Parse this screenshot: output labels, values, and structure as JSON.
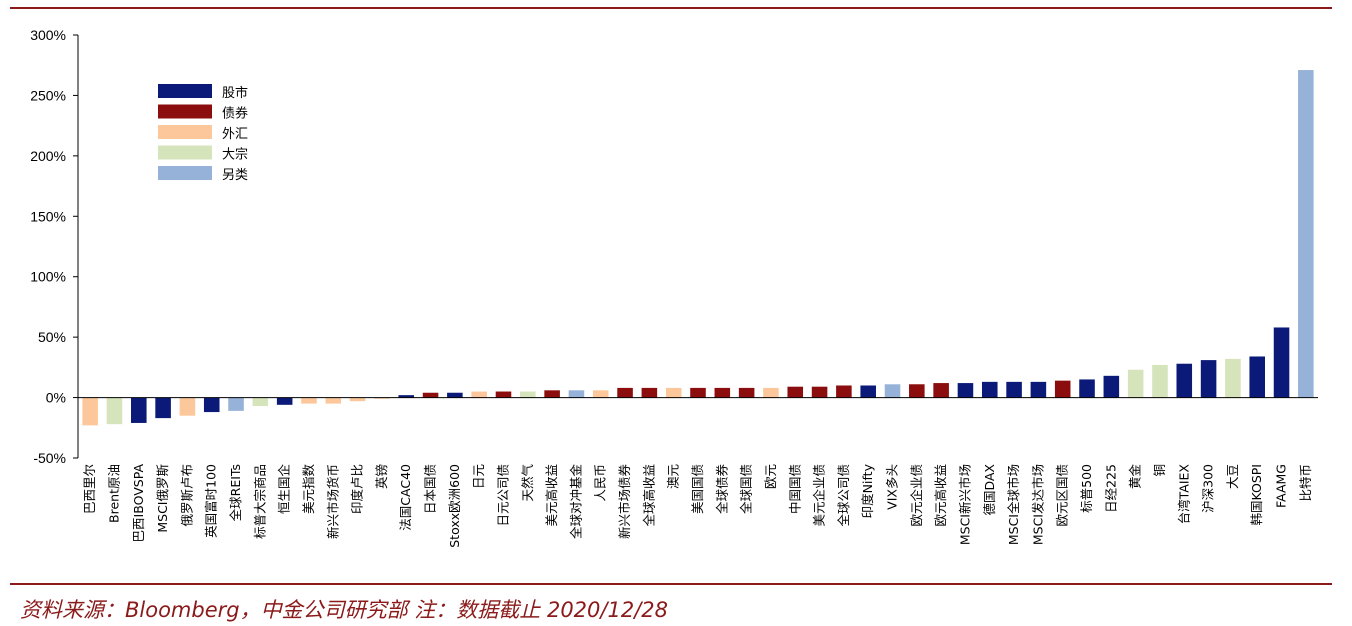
{
  "source_note": "资料来源：Bloomberg，中金公司研究部  注：数据截止 2020/12/28",
  "colors": {
    "股市": "#0b1a78",
    "债券": "#8b0d0d",
    "外汇": "#fcc89b",
    "大宗": "#d6e4bc",
    "另类": "#96b2d8",
    "rule": "#8b1a1a"
  },
  "chart_data": {
    "type": "bar",
    "ylim": [
      -50,
      300
    ],
    "yticks": [
      "-50%",
      "0%",
      "50%",
      "100%",
      "150%",
      "200%",
      "250%",
      "300%"
    ],
    "ytick_values": [
      -50,
      0,
      50,
      100,
      150,
      200,
      250,
      300
    ],
    "grid": false,
    "legend_placement": "top-left",
    "legend": [
      "股市",
      "债券",
      "外汇",
      "大宗",
      "另类"
    ],
    "categories": [
      "巴西里尔",
      "Brent原油",
      "巴西IBOVSPA",
      "MSCI俄罗斯",
      "俄罗斯卢布",
      "英国富时100",
      "全球REITs",
      "标普大宗商品",
      "恒生国企",
      "美元指数",
      "新兴市场货币",
      "印度卢比",
      "英镑",
      "法国CAC40",
      "日本国债",
      "Stoxx欧洲600",
      "日元",
      "日元公司债",
      "天然气",
      "美元高收益",
      "全球对冲基金",
      "人民币",
      "新兴市场债券",
      "全球高收益",
      "澳元",
      "美国国债",
      "全球债券",
      "全球国债",
      "欧元",
      "中国国债",
      "美元企业债",
      "全球公司债",
      "印度Nifty",
      "VIX多头",
      "欧元企业债",
      "欧元高收益",
      "MSCI新兴市场",
      "德国DAX",
      "MSCI全球市场",
      "MSCI发达市场",
      "欧元区国债",
      "标普500",
      "日经225",
      "黄金",
      "铜",
      "台湾TAIEX",
      "沪深300",
      "大豆",
      "韩国KOSPI",
      "FAAMG",
      "比特币"
    ],
    "values": [
      -23,
      -22,
      -21,
      -17,
      -15,
      -12,
      -11,
      -7,
      -6,
      -5,
      -5,
      -3,
      -1,
      2,
      4,
      4,
      5,
      5,
      5,
      6,
      6,
      6,
      8,
      8,
      8,
      8,
      8,
      8,
      8,
      9,
      9,
      10,
      10,
      11,
      11,
      12,
      12,
      13,
      13,
      13,
      14,
      15,
      18,
      23,
      27,
      28,
      31,
      32,
      34,
      58,
      271
    ],
    "asset_class": [
      "外汇",
      "大宗",
      "股市",
      "股市",
      "外汇",
      "股市",
      "另类",
      "大宗",
      "股市",
      "外汇",
      "外汇",
      "外汇",
      "外汇",
      "股市",
      "债券",
      "股市",
      "外汇",
      "债券",
      "大宗",
      "债券",
      "另类",
      "外汇",
      "债券",
      "债券",
      "外汇",
      "债券",
      "债券",
      "债券",
      "外汇",
      "债券",
      "债券",
      "债券",
      "股市",
      "另类",
      "债券",
      "债券",
      "股市",
      "股市",
      "股市",
      "股市",
      "债券",
      "股市",
      "股市",
      "大宗",
      "大宗",
      "股市",
      "股市",
      "大宗",
      "股市",
      "股市",
      "另类"
    ]
  }
}
